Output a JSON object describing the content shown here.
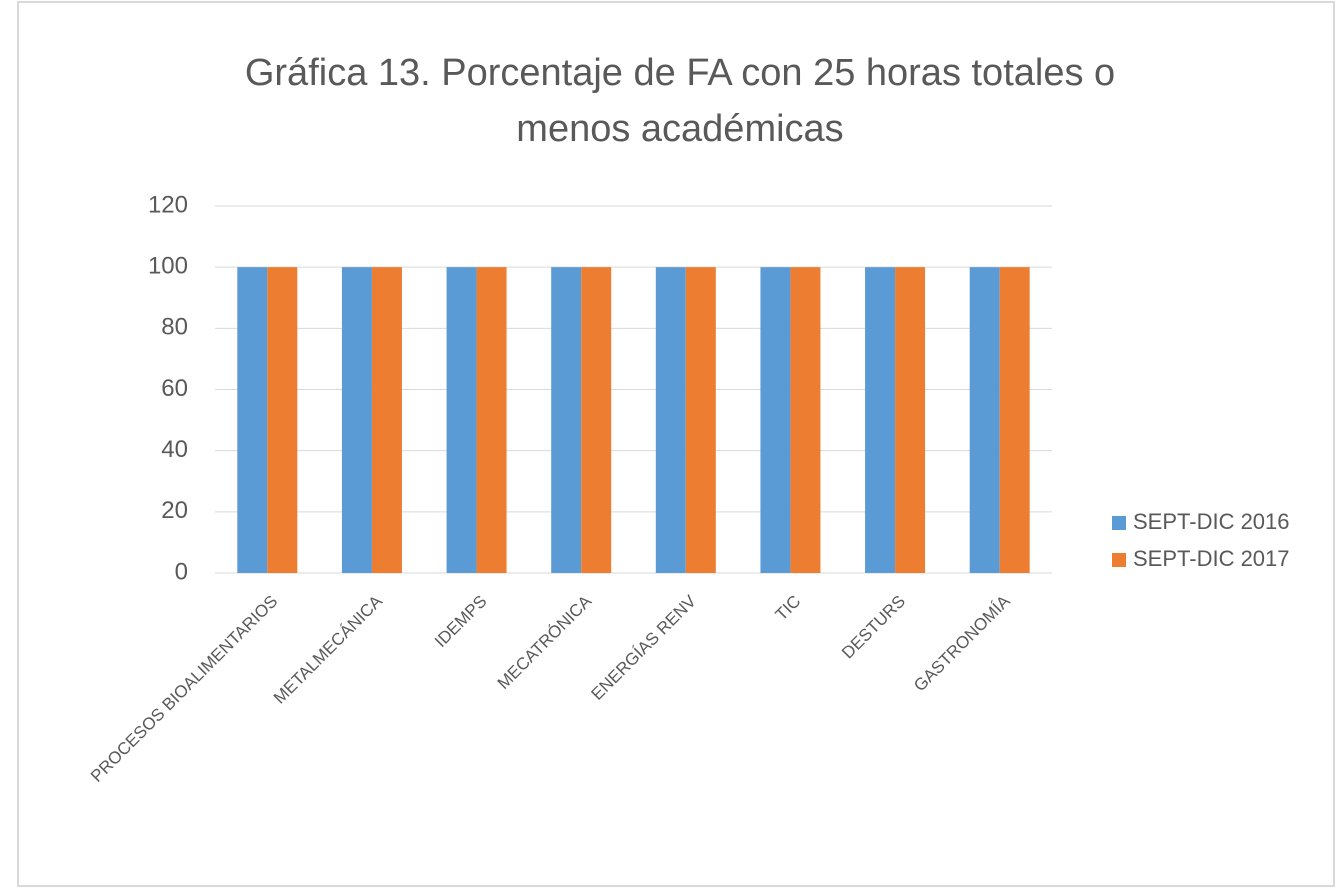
{
  "chart_data": {
    "type": "bar",
    "title": "Gráfica 13.  Porcentaje de FA con 25 horas totales o menos académicas",
    "categories": [
      "PROCESOS BIOALIMENTARIOS",
      "METALMECÁNICA",
      "IDEMPS",
      "MECATRÓNICA",
      "ENERGÍAS RENV",
      "TIC",
      "DESTURS",
      "GASTRONOMÍA"
    ],
    "series": [
      {
        "name": "SEPT-DIC 2016",
        "color": "#5b9bd5",
        "values": [
          100,
          100,
          100,
          100,
          100,
          100,
          100,
          100
        ]
      },
      {
        "name": "SEPT-DIC 2017",
        "color": "#ed7d31",
        "values": [
          100,
          100,
          100,
          100,
          100,
          100,
          100,
          100
        ]
      }
    ],
    "ylim": [
      0,
      120
    ],
    "yticks": [
      0,
      20,
      40,
      60,
      80,
      100,
      120
    ],
    "grid": true,
    "legend": "right"
  }
}
